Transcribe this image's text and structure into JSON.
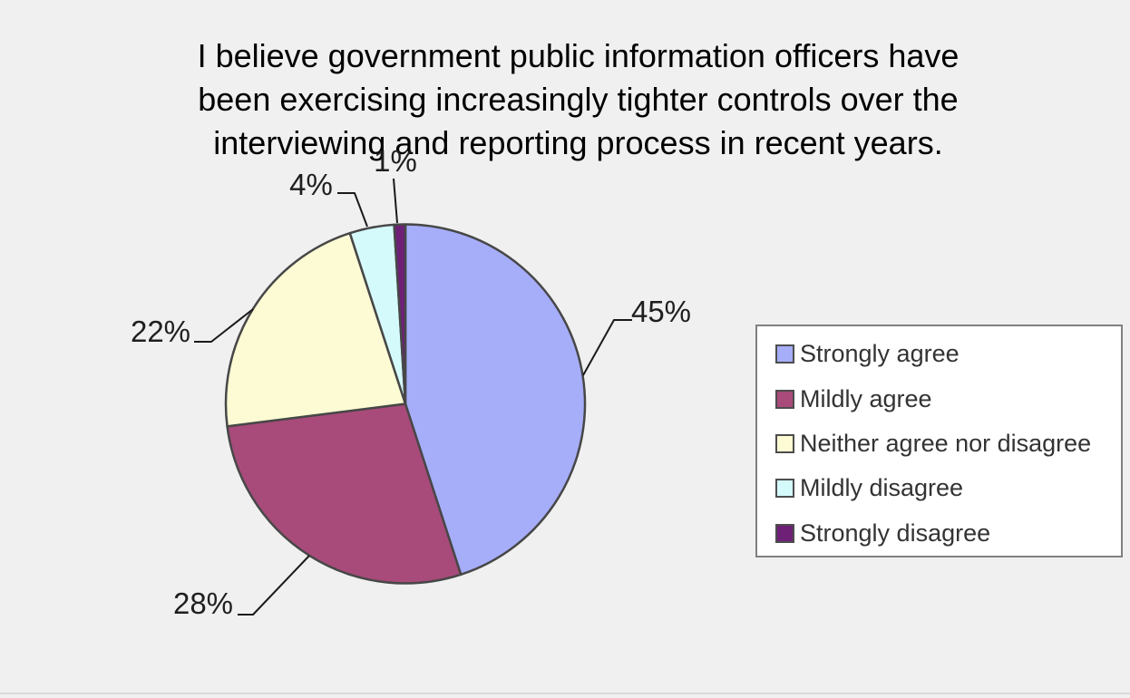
{
  "page": {
    "background_color": "#f0f0f0"
  },
  "chart_data": {
    "type": "pie",
    "title": "I believe government public information officers have been exercising increasingly tighter controls over the interviewing and reporting process in recent years.",
    "title_lines": [
      "I believe government public information officers have",
      "been exercising increasingly tighter controls over the",
      "interviewing and reporting process in recent years."
    ],
    "categories": [
      "Strongly agree",
      "Mildly agree",
      "Neither agree nor disagree",
      "Mildly disagree",
      "Strongly disagree"
    ],
    "values": [
      45,
      28,
      22,
      4,
      1
    ],
    "data_labels": [
      "45%",
      "28%",
      "22%",
      "4%",
      "1%"
    ],
    "colors": [
      "#a6aefa",
      "#a84b7a",
      "#fdfbd4",
      "#d5fafc",
      "#6e2077"
    ],
    "slice_border_color": "#474747",
    "leader_line_color": "#1a1a1a",
    "label_color": "#1f1f1f",
    "start_angle_deg": 0,
    "direction": "clockwise",
    "legend": {
      "position": "right",
      "background": "#ffffff",
      "border_color": "#808080",
      "entries": [
        "Strongly agree",
        "Mildly agree",
        "Neither agree nor disagree",
        "Mildly disagree",
        "Strongly disagree"
      ]
    }
  }
}
